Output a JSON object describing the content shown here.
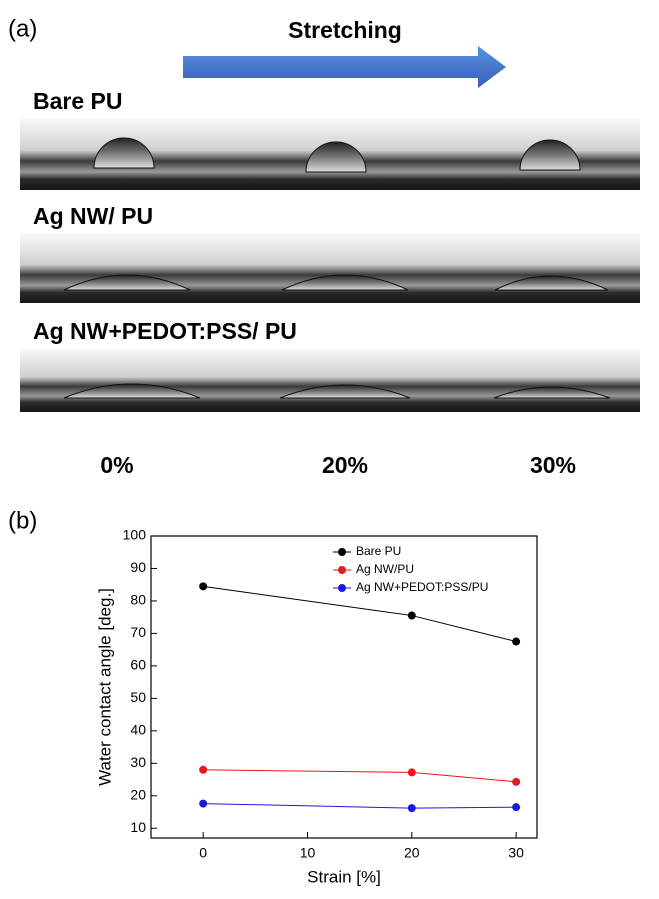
{
  "panel_a": {
    "label": "(a)",
    "arrow_label": "Stretching",
    "rows": [
      "Bare PU",
      "Ag NW/ PU",
      "Ag NW+PEDOT:PSS/ PU"
    ],
    "columns": [
      "0%",
      "20%",
      "30%"
    ]
  },
  "panel_b": {
    "label": "(b)"
  },
  "chart_data": {
    "type": "line",
    "x_label": "Strain [%]",
    "y_label": "Water contact angle [deg.]",
    "x": [
      0,
      20,
      30
    ],
    "series": [
      {
        "name": "Bare PU",
        "color": "#000000",
        "values": [
          84.5,
          75.5,
          67.5
        ]
      },
      {
        "name": "Ag NW/PU",
        "color": "#e8191c",
        "values": [
          28,
          27.2,
          24.3
        ]
      },
      {
        "name": "Ag NW+PEDOT:PSS/PU",
        "color": "#1a1adf",
        "values": [
          17.6,
          16.2,
          16.5
        ]
      }
    ],
    "xlim": [
      -5,
      32
    ],
    "xticks": [
      0,
      10,
      20,
      30
    ],
    "ylim": [
      7,
      100
    ],
    "yticks": [
      10,
      20,
      30,
      40,
      50,
      60,
      70,
      80,
      90,
      100
    ],
    "legend": "top"
  }
}
